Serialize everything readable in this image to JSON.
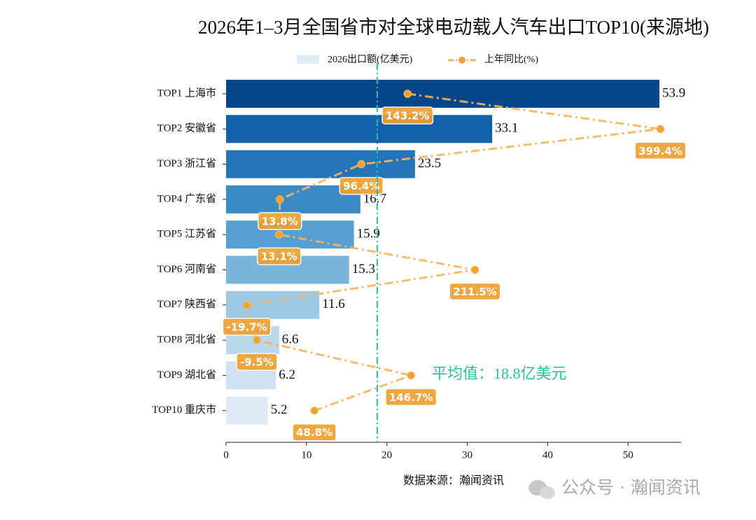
{
  "chart_data": {
    "type": "bar",
    "title": "2026年1–3月全国省市对全球电动载人汽车出口TOP10(来源地)",
    "categories": [
      "TOP1 上海市",
      "TOP2 安徽省",
      "TOP3 浙江省",
      "TOP4 广东省",
      "TOP5 江苏省",
      "TOP6 河南省",
      "TOP7 陕西省",
      "TOP8 河北省",
      "TOP9 湖北省",
      "TOP10 重庆市"
    ],
    "series": [
      {
        "name": "2026出口额(亿美元)",
        "type": "bar",
        "colors": [
          "#08468c",
          "#1361aa",
          "#2474b8",
          "#3a8ac6",
          "#569fd2",
          "#79b4db",
          "#9dc9e4",
          "#bad7ec",
          "#cfe1f2",
          "#deebf7"
        ],
        "values": [
          53.9,
          33.1,
          23.5,
          16.7,
          15.9,
          15.3,
          11.6,
          6.6,
          6.2,
          5.2
        ]
      },
      {
        "name": "上年同比(%)",
        "type": "line",
        "axis": "x2",
        "color": "#f7b35c",
        "marker_color": "#f0a030",
        "values": [
          143.2,
          399.4,
          96.4,
          13.8,
          13.1,
          211.5,
          -19.7,
          -9.5,
          146.7,
          48.8
        ],
        "value_labels": [
          "143.2%",
          "399.4%",
          "96.4%",
          "13.8%",
          "13.1%",
          "211.5%",
          "-19.7%",
          "-9.5%",
          "146.7%",
          "48.8%"
        ]
      }
    ],
    "xlim": [
      0,
      56.6
    ],
    "xticks": [
      0,
      10,
      20,
      30,
      40,
      50
    ],
    "x2lim": [
      -40.65,
      420.35
    ],
    "average": 18.8,
    "average_label": "平均值：18.8亿美元",
    "average_color": "#2abf9e",
    "source": "数据来源：瀚闻资讯",
    "watermark": "公众号 · 瀚闻资讯"
  }
}
